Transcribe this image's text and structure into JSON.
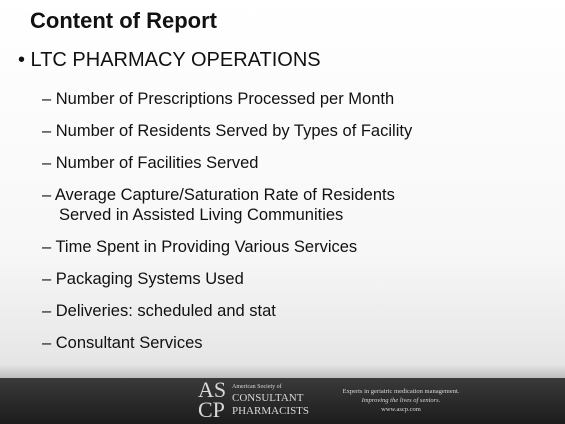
{
  "slide": {
    "title": "Content of Report",
    "bullet": "• LTC PHARMACY OPERATIONS",
    "items": [
      {
        "lines": [
          "– Number of Prescriptions Processed per Month"
        ]
      },
      {
        "lines": [
          "– Number of Residents Served by Types of Facility"
        ]
      },
      {
        "lines": [
          "– Number of Facilities Served"
        ]
      },
      {
        "lines": [
          "– Average Capture/Saturation Rate of Residents",
          "Served in Assisted Living Communities"
        ]
      },
      {
        "lines": [
          "– Time Spent in Providing Various Services"
        ]
      },
      {
        "lines": [
          "– Packaging Systems Used"
        ]
      },
      {
        "lines": [
          "– Deliveries: scheduled and stat"
        ]
      },
      {
        "lines": [
          "– Consultant Services"
        ]
      }
    ]
  },
  "footer": {
    "logo_letters": [
      "AS",
      "CP"
    ],
    "logo_lines": [
      "American Society of",
      "CONSULTANT",
      "PHARMACISTS"
    ],
    "tagline": [
      "Experts in geriatric medication management.",
      "Improving the lives of seniors.",
      "www.ascp.com"
    ]
  }
}
